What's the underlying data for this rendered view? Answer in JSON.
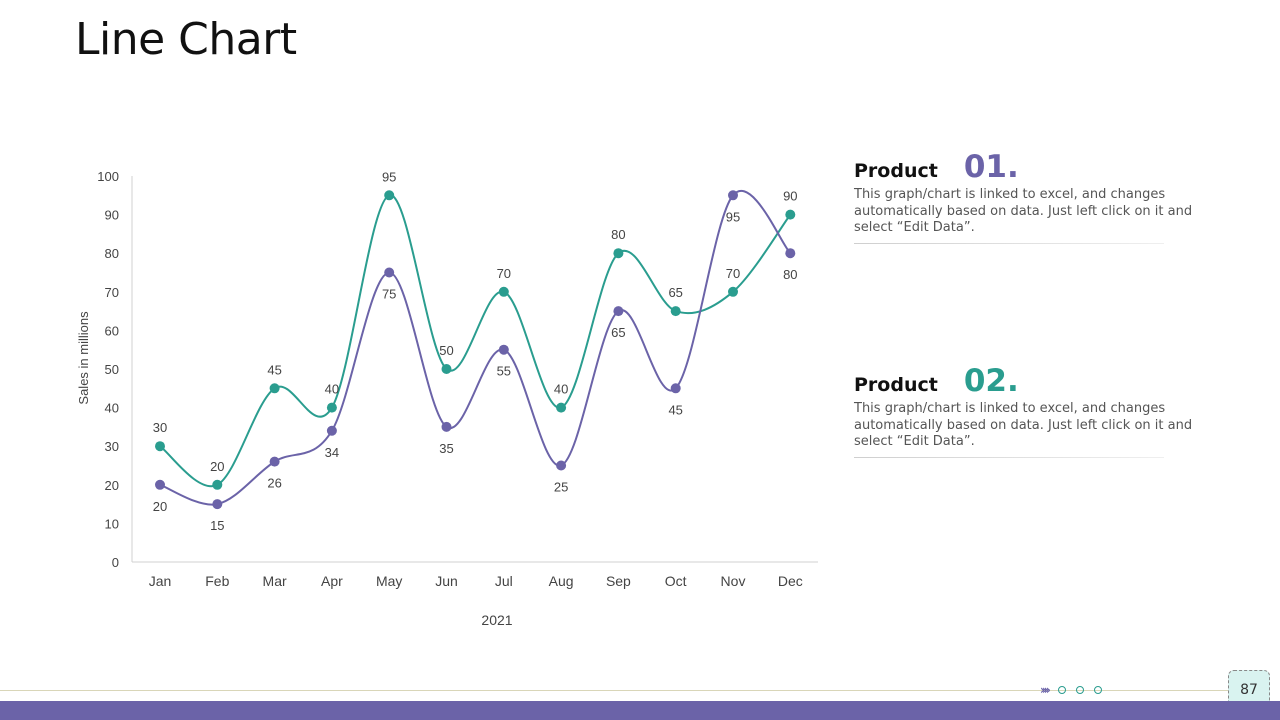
{
  "page": {
    "title": "Line Chart",
    "page_number": "87"
  },
  "colors": {
    "series_purple": "#6b63a8",
    "series_teal": "#2a9d8f",
    "bottom_bar": "#6b63a8",
    "page_box_fill": "#d9f3f0",
    "axis_text": "#444444"
  },
  "products": [
    {
      "label": "Product",
      "number": "01.",
      "color": "#6b63a8",
      "description": "This graph/chart is linked to excel, and changes automatically based on data. Just left click on it and select “Edit Data”."
    },
    {
      "label": "Product",
      "number": "02.",
      "color": "#2a9d8f",
      "description": "This graph/chart is linked to excel, and changes automatically based on data. Just left click on it and select “Edit Data”."
    }
  ],
  "footer": {
    "decoration_icons": [
      "chevrons-icon",
      "circle-icon",
      "circle-icon",
      "circle-icon"
    ]
  },
  "chart_data": {
    "type": "line",
    "categories": [
      "Jan",
      "Feb",
      "Mar",
      "Apr",
      "May",
      "Jun",
      "Jul",
      "Aug",
      "Sep",
      "Oct",
      "Nov",
      "Dec"
    ],
    "xlabel": "2021",
    "ylabel": "Sales in millions",
    "ylim": [
      0,
      100
    ],
    "yticks": [
      0,
      10,
      20,
      30,
      40,
      50,
      60,
      70,
      80,
      90,
      100
    ],
    "grid": false,
    "smooth": true,
    "series": [
      {
        "color": "#2a9d8f",
        "values": [
          30,
          20,
          45,
          40,
          95,
          50,
          70,
          40,
          80,
          65,
          70,
          90
        ],
        "label_position": [
          "above",
          "above",
          "above",
          "above",
          "above",
          "above",
          "above",
          "above",
          "above",
          "above",
          "above",
          "above"
        ]
      },
      {
        "color": "#6b63a8",
        "values": [
          20,
          15,
          26,
          34,
          75,
          35,
          55,
          25,
          65,
          45,
          95,
          80
        ],
        "label_position": [
          "below",
          "below",
          "below",
          "below",
          "below",
          "below",
          "below",
          "below",
          "below",
          "below",
          "below",
          "below"
        ]
      }
    ]
  }
}
